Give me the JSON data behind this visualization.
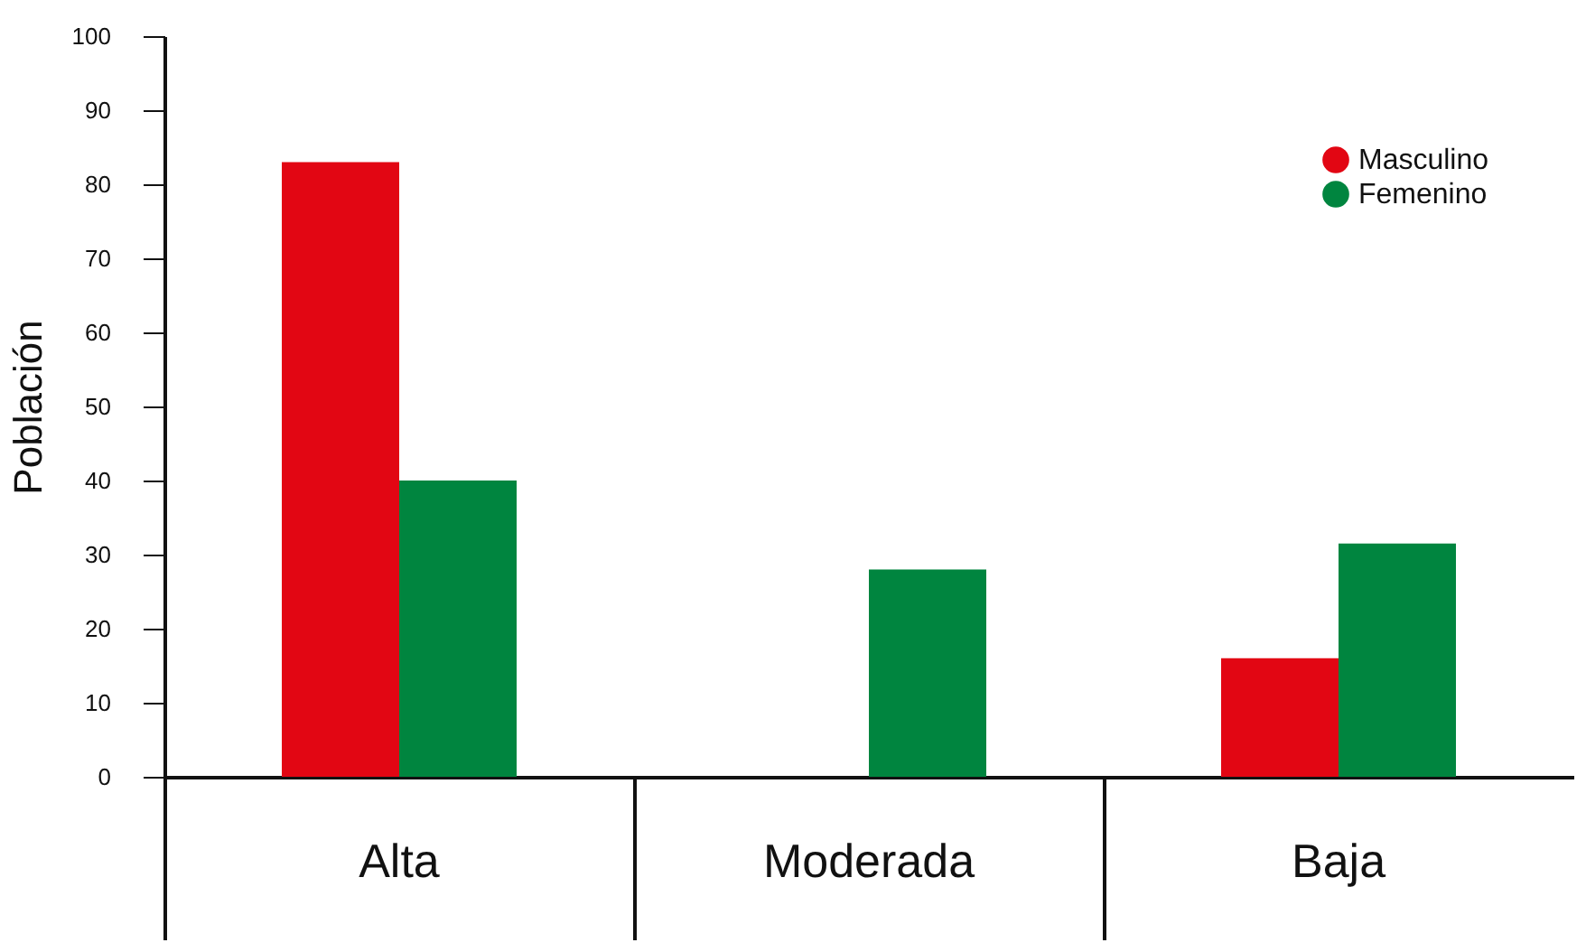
{
  "chart_data": {
    "type": "bar",
    "ylabel": "Población",
    "categories": [
      "Alta",
      "Moderada",
      "Baja"
    ],
    "series": [
      {
        "name": "Masculino",
        "color": "#e20613",
        "values": [
          83,
          0,
          16
        ]
      },
      {
        "name": "Femenino",
        "color": "#00853f",
        "values": [
          40,
          28,
          31.5
        ]
      }
    ],
    "ylim": [
      0,
      100
    ],
    "yticks": [
      0,
      10,
      20,
      30,
      40,
      50,
      60,
      70,
      80,
      90,
      100
    ],
    "grid": false,
    "legend": "top right"
  }
}
